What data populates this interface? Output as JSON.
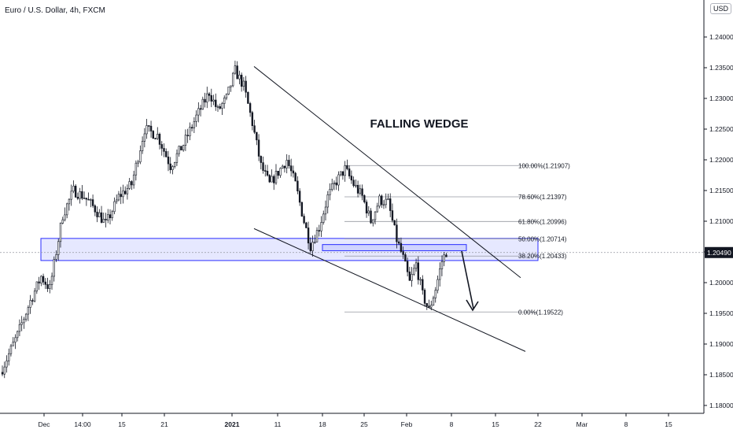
{
  "header": {
    "symbol_title": "Euro / U.S. Dollar, 4h, FXCM",
    "currency_button": "USD"
  },
  "price_axis": {
    "ticks": [
      "1.24000",
      "1.23500",
      "1.23000",
      "1.22500",
      "1.22000",
      "1.21500",
      "1.21000",
      "1.20500",
      "1.20000",
      "1.19500",
      "1.19000",
      "1.18500",
      "1.18000"
    ],
    "last_price_label": "1.20490",
    "last_price": 1.2049,
    "colors": {
      "last_price_bg": "#131722"
    }
  },
  "time_axis": {
    "ticks": [
      "Dec",
      "14:00",
      "15",
      "21",
      "2021",
      "11",
      "18",
      "25",
      "Feb",
      "8",
      "15",
      "22",
      "Mar",
      "8",
      "15"
    ],
    "bold_ticks": [
      "2021"
    ]
  },
  "annotations": {
    "pattern_label": "FALLING WEDGE"
  },
  "fibonacci": {
    "levels": [
      {
        "label": "100.00%(1.21907)",
        "price": 1.21907
      },
      {
        "label": "78.60%(1.21397)",
        "price": 1.21397
      },
      {
        "label": "61.80%(1.20996)",
        "price": 1.20996
      },
      {
        "label": "50.00%(1.20714)",
        "price": 1.20714
      },
      {
        "label": "38.20%(1.20433)",
        "price": 1.20433
      },
      {
        "label": "0.00%(1.19522)",
        "price": 1.19522
      }
    ]
  },
  "zones": {
    "support_resistance": {
      "price_top": 1.2072,
      "price_bottom": 1.2036
    },
    "inner_box": {
      "price_top": 1.2062,
      "price_bottom": 1.2052
    }
  },
  "colors": {
    "candle": "#131722",
    "zone_fill": "rgba(90,100,255,0.15)",
    "zone_stroke": "#2a2eff",
    "trendline": "#131722",
    "fib_line": "#9598a1"
  },
  "chart_data": {
    "type": "candlestick",
    "title": "Euro / U.S. Dollar, 4h, FXCM",
    "ylim": [
      1.1775,
      1.2425
    ],
    "y_ticks": [
      1.18,
      1.185,
      1.19,
      1.195,
      1.2,
      1.205,
      1.21,
      1.215,
      1.22,
      1.225,
      1.23,
      1.235,
      1.24
    ],
    "x_ticks": [
      "Dec",
      "14:00",
      "15",
      "21",
      "2021",
      "11",
      "18",
      "25",
      "Feb",
      "8",
      "15",
      "22",
      "Mar",
      "8",
      "15"
    ],
    "grid": false,
    "close_path": [
      [
        0,
        1.186
      ],
      [
        7,
        1.1915
      ],
      [
        13,
        1.197
      ],
      [
        18,
        1.201
      ],
      [
        22,
        1.199
      ],
      [
        28,
        1.211
      ],
      [
        33,
        1.215
      ],
      [
        38,
        1.214
      ],
      [
        43,
        1.212
      ],
      [
        48,
        1.2095
      ],
      [
        54,
        1.214
      ],
      [
        60,
        1.216
      ],
      [
        66,
        1.225
      ],
      [
        72,
        1.224
      ],
      [
        78,
        1.219
      ],
      [
        84,
        1.2225
      ],
      [
        90,
        1.227
      ],
      [
        96,
        1.231
      ],
      [
        100,
        1.228
      ],
      [
        104,
        1.23
      ],
      [
        108,
        1.2345
      ],
      [
        112,
        1.232
      ],
      [
        116,
        1.226
      ],
      [
        120,
        1.219
      ],
      [
        124,
        1.216
      ],
      [
        128,
        1.218
      ],
      [
        132,
        1.22
      ],
      [
        136,
        1.216
      ],
      [
        140,
        1.21
      ],
      [
        143,
        1.206
      ],
      [
        147,
        1.209
      ],
      [
        151,
        1.214
      ],
      [
        155,
        1.2165
      ],
      [
        159,
        1.2185
      ],
      [
        163,
        1.216
      ],
      [
        167,
        1.214
      ],
      [
        171,
        1.21
      ],
      [
        175,
        1.2135
      ],
      [
        179,
        1.213
      ],
      [
        183,
        1.207
      ],
      [
        186,
        1.204
      ],
      [
        189,
        1.2
      ],
      [
        192,
        1.203
      ],
      [
        195,
        1.198
      ],
      [
        198,
        1.1955
      ],
      [
        201,
        1.199
      ],
      [
        204,
        1.2035
      ],
      [
        206,
        1.205
      ]
    ],
    "lines": [
      {
        "name": "",
        "points": [
          [
            120,
            1.2352
          ],
          [
            252,
            1.2008
          ]
        ]
      },
      {
        "name": "",
        "points": [
          [
            120,
            1.2088
          ],
          [
            248,
            1.1888
          ]
        ]
      }
    ]
  }
}
